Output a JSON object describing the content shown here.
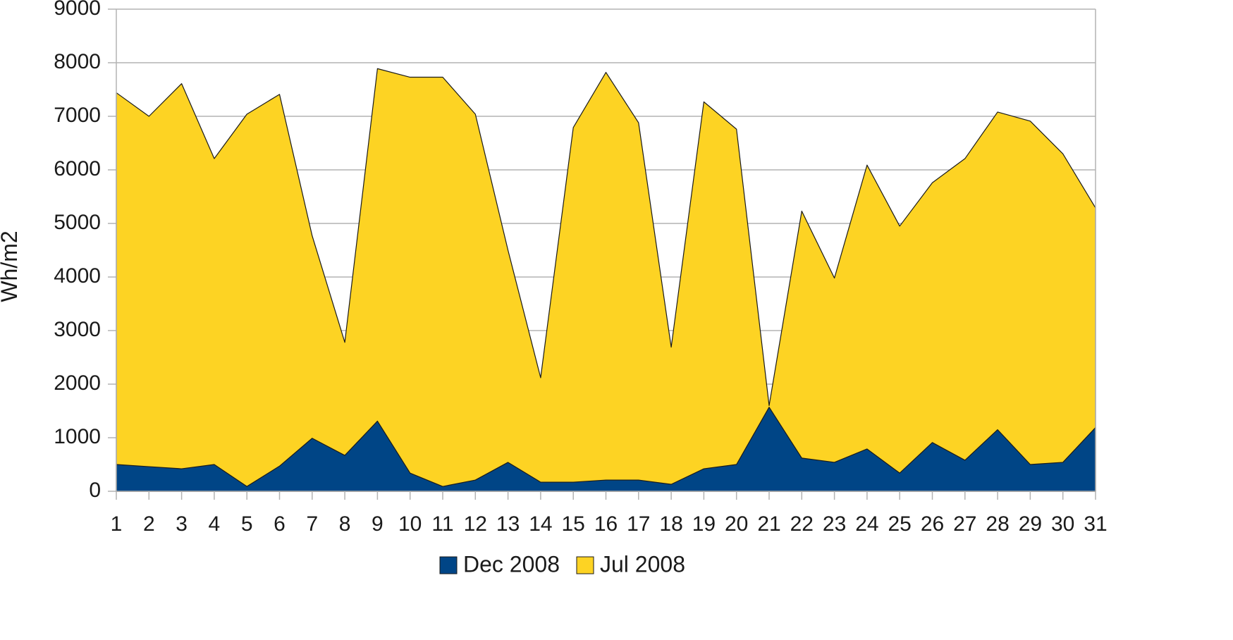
{
  "chart_data": {
    "type": "area",
    "stacked": false,
    "title": "",
    "xlabel": "",
    "ylabel": "Wh/m2",
    "ylim": [
      0,
      9000
    ],
    "yticks": [
      0,
      1000,
      2000,
      3000,
      4000,
      5000,
      6000,
      7000,
      8000,
      9000
    ],
    "x": [
      1,
      2,
      3,
      4,
      5,
      6,
      7,
      8,
      9,
      10,
      11,
      12,
      13,
      14,
      15,
      16,
      17,
      18,
      19,
      20,
      21,
      22,
      23,
      24,
      25,
      26,
      27,
      28,
      29,
      30,
      31
    ],
    "grid": true,
    "legend": "bottom",
    "series": [
      {
        "name": "Jul 2008",
        "color": "#fdd323",
        "values": [
          7440,
          7000,
          7610,
          6210,
          7040,
          7410,
          4770,
          2780,
          7890,
          7730,
          7730,
          7040,
          4500,
          2120,
          6790,
          7820,
          6880,
          2690,
          7270,
          6760,
          1600,
          5230,
          3980,
          6090,
          4950,
          5760,
          6210,
          7080,
          6910,
          6300,
          5290
        ]
      },
      {
        "name": "Dec 2008",
        "color": "#004586",
        "values": [
          500,
          460,
          420,
          500,
          90,
          470,
          990,
          670,
          1310,
          340,
          90,
          210,
          540,
          170,
          170,
          210,
          210,
          130,
          420,
          500,
          1570,
          620,
          540,
          790,
          340,
          910,
          580,
          1150,
          500,
          540,
          1190
        ]
      }
    ]
  }
}
